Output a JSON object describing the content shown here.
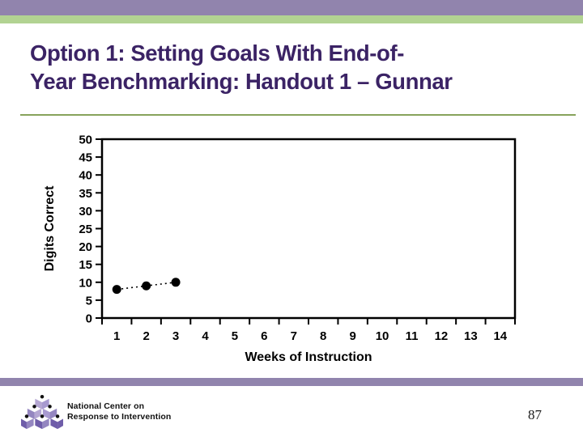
{
  "slide": {
    "title_line1": "Option 1: Setting Goals With End-of-",
    "title_line2": "Year Benchmarking: Handout 1 – Gunnar",
    "page_number": "87"
  },
  "footer": {
    "org_line1": "National Center on",
    "org_line2": "Response to Intervention"
  },
  "colors": {
    "top_bar_purple": "#9184AD",
    "accent_green": "#B2D392",
    "title_purple": "#3B2365",
    "separator_olive": "#87A35B",
    "chart_black": "#000000",
    "logo_light_purple": "#B5A7D3",
    "logo_mid_purple": "#9486C0",
    "logo_mid_light_purple": "#A89AD0",
    "logo_dark_purple": "#6F5DA9"
  },
  "chart_data": {
    "type": "line",
    "x": [
      1,
      2,
      3
    ],
    "y": [
      8,
      9,
      10
    ],
    "xlabel": "Weeks of Instruction",
    "ylabel": "Digits Correct",
    "x_ticks": [
      1,
      2,
      3,
      4,
      5,
      6,
      7,
      8,
      9,
      10,
      11,
      12,
      13,
      14
    ],
    "y_ticks": [
      0,
      5,
      10,
      15,
      20,
      25,
      30,
      35,
      40,
      45,
      50
    ],
    "xlim": [
      0,
      14
    ],
    "ylim": [
      0,
      50
    ],
    "grid": false,
    "legend": "none",
    "line_style": "dotted",
    "marker": "filled-circle",
    "marker_color": "#000000",
    "line_color": "#000000"
  }
}
